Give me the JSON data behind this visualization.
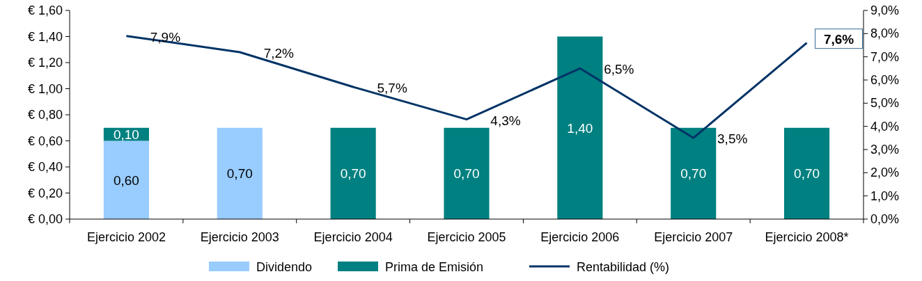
{
  "chart_data": {
    "type": "bar",
    "stacked": true,
    "categories": [
      "Ejercicio 2002",
      "Ejercicio 2003",
      "Ejercicio 2004",
      "Ejercicio 2005",
      "Ejercicio 2006",
      "Ejercicio 2007",
      "Ejercicio 2008*"
    ],
    "series": [
      {
        "name": "Dividendo",
        "color": "#99ccff",
        "values": [
          0.6,
          0.7,
          null,
          null,
          null,
          null,
          null
        ],
        "value_labels": [
          "0,60",
          "0,70",
          null,
          null,
          null,
          null,
          null
        ]
      },
      {
        "name": "Prima de Emisión",
        "color": "#008080",
        "values": [
          0.1,
          null,
          0.7,
          0.7,
          1.4,
          0.7,
          0.7
        ],
        "value_labels": [
          "0,10",
          null,
          "0,70",
          "0,70",
          "1,40",
          "0,70",
          "0,70"
        ]
      },
      {
        "name": "Rentabilidad (%)",
        "type": "line",
        "axis": "y2",
        "color": "#003366",
        "values": [
          7.9,
          7.2,
          5.7,
          4.3,
          6.5,
          3.5,
          7.6
        ],
        "value_labels": [
          "7,9%",
          "7,2%",
          "5,7%",
          "4,3%",
          "6,5%",
          "3,5%",
          "7,6%"
        ]
      }
    ],
    "ylim": [
      0,
      1.6
    ],
    "yticks": [
      {
        "value": 0,
        "label": "€ 0,00"
      },
      {
        "value": 0.2,
        "label": "€ 0,20"
      },
      {
        "value": 0.4,
        "label": "€ 0,40"
      },
      {
        "value": 0.6,
        "label": "€ 0,60"
      },
      {
        "value": 0.8,
        "label": "€ 0,80"
      },
      {
        "value": 1,
        "label": "€ 1,00"
      },
      {
        "value": 1.2,
        "label": "€ 1,20"
      },
      {
        "value": 1.4,
        "label": "€ 1,40"
      },
      {
        "value": 1.6,
        "label": "€ 1,60"
      }
    ],
    "y2lim": [
      0,
      9
    ],
    "y2ticks": [
      {
        "value": 0,
        "label": "0,0%"
      },
      {
        "value": 1,
        "label": "1,0%"
      },
      {
        "value": 2,
        "label": "2,0%"
      },
      {
        "value": 3,
        "label": "3,0%"
      },
      {
        "value": 4,
        "label": "4,0%"
      },
      {
        "value": 5,
        "label": "5,0%"
      },
      {
        "value": 6,
        "label": "6,0%"
      },
      {
        "value": 7,
        "label": "7,0%"
      },
      {
        "value": 8,
        "label": "8,0%"
      },
      {
        "value": 9,
        "label": "9,0%"
      }
    ],
    "grid": false,
    "legend": "bottom",
    "marker": "none",
    "line_style": "solid"
  }
}
